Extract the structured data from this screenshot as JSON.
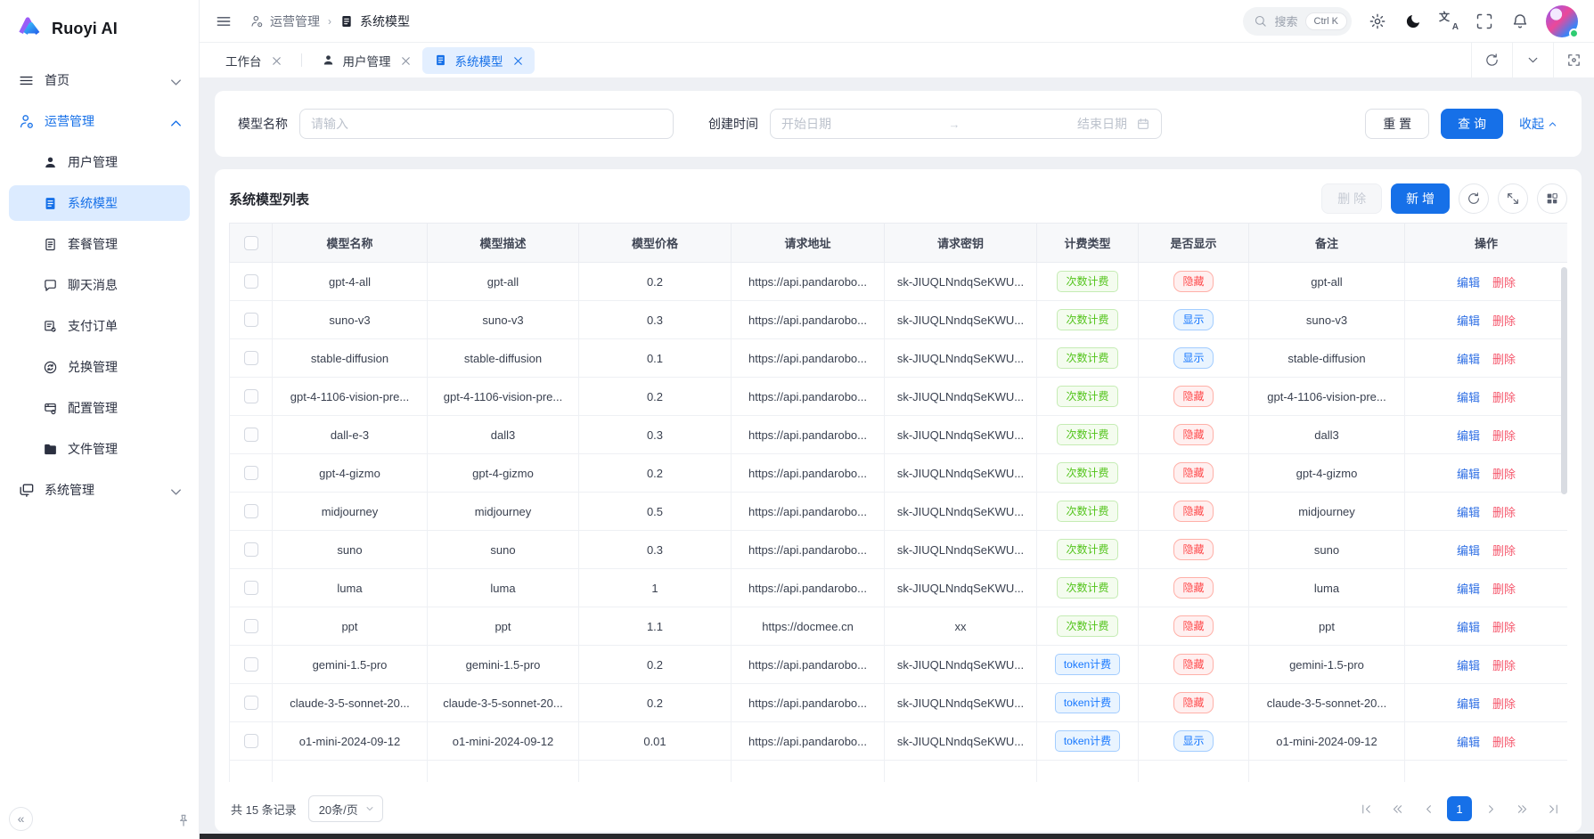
{
  "brand": {
    "name": "Ruoyi AI"
  },
  "sidebar": {
    "items": [
      {
        "id": "home",
        "label": "首页",
        "icon": "menu",
        "chevron": "down"
      },
      {
        "id": "operations",
        "label": "运营管理",
        "icon": "user-gear",
        "chevron": "up",
        "active": true,
        "children": [
          {
            "id": "user-management",
            "label": "用户管理",
            "icon": "user"
          },
          {
            "id": "system-models",
            "label": "系统模型",
            "icon": "doc-list",
            "active": true
          },
          {
            "id": "plan-management",
            "label": "套餐管理",
            "icon": "doc-outline"
          },
          {
            "id": "chat-messages",
            "label": "聊天消息",
            "icon": "chat"
          },
          {
            "id": "payment-orders",
            "label": "支付订单",
            "icon": "receipt"
          },
          {
            "id": "redeem-management",
            "label": "兑换管理",
            "icon": "exchange"
          },
          {
            "id": "config-management",
            "label": "配置管理",
            "icon": "config"
          },
          {
            "id": "file-management",
            "label": "文件管理",
            "icon": "folder"
          }
        ]
      },
      {
        "id": "system",
        "label": "系统管理",
        "icon": "monitor",
        "chevron": "down"
      }
    ]
  },
  "header": {
    "breadcrumb": [
      {
        "id": "operations",
        "label": "运营管理",
        "icon": "user-gear"
      },
      {
        "id": "system-models",
        "label": "系统模型",
        "icon": "doc-list"
      }
    ],
    "search": {
      "placeholder": "搜索",
      "shortcut": "Ctrl K"
    }
  },
  "tabs": [
    {
      "id": "workbench",
      "label": "工作台"
    },
    {
      "id": "user-management",
      "label": "用户管理",
      "icon": "user"
    },
    {
      "id": "system-models",
      "label": "系统模型",
      "icon": "doc-list",
      "active": true
    }
  ],
  "filter": {
    "model_name_label": "模型名称",
    "model_name_placeholder": "请输入",
    "create_time_label": "创建时间",
    "date_start_placeholder": "开始日期",
    "date_end_placeholder": "结束日期",
    "reset_label": "重 置",
    "search_label": "查 询",
    "collapse_label": "收起"
  },
  "table": {
    "title": "系统模型列表",
    "delete_label": "删 除",
    "add_label": "新 增",
    "columns": [
      "模型名称",
      "模型描述",
      "模型价格",
      "请求地址",
      "请求密钥",
      "计费类型",
      "是否显示",
      "备注",
      "操作"
    ],
    "edit_label": "编辑",
    "del_label": "删除",
    "billing_labels": {
      "count": "次数计费",
      "token": "token计费"
    },
    "visibility_labels": {
      "visible": "显示",
      "hidden": "隐藏"
    },
    "rows": [
      {
        "name": "gpt-4-all",
        "desc": "gpt-all",
        "price": "0.2",
        "url": "https://api.pandarobo...",
        "key": "sk-JIUQLNndqSeKWU...",
        "billing": "count",
        "visible": false,
        "remark": "gpt-all"
      },
      {
        "name": "suno-v3",
        "desc": "suno-v3",
        "price": "0.3",
        "url": "https://api.pandarobo...",
        "key": "sk-JIUQLNndqSeKWU...",
        "billing": "count",
        "visible": true,
        "remark": "suno-v3"
      },
      {
        "name": "stable-diffusion",
        "desc": "stable-diffusion",
        "price": "0.1",
        "url": "https://api.pandarobo...",
        "key": "sk-JIUQLNndqSeKWU...",
        "billing": "count",
        "visible": true,
        "remark": "stable-diffusion"
      },
      {
        "name": "gpt-4-1106-vision-pre...",
        "desc": "gpt-4-1106-vision-pre...",
        "price": "0.2",
        "url": "https://api.pandarobo...",
        "key": "sk-JIUQLNndqSeKWU...",
        "billing": "count",
        "visible": false,
        "remark": "gpt-4-1106-vision-pre..."
      },
      {
        "name": "dall-e-3",
        "desc": "dall3",
        "price": "0.3",
        "url": "https://api.pandarobo...",
        "key": "sk-JIUQLNndqSeKWU...",
        "billing": "count",
        "visible": false,
        "remark": "dall3"
      },
      {
        "name": "gpt-4-gizmo",
        "desc": "gpt-4-gizmo",
        "price": "0.2",
        "url": "https://api.pandarobo...",
        "key": "sk-JIUQLNndqSeKWU...",
        "billing": "count",
        "visible": false,
        "remark": "gpt-4-gizmo"
      },
      {
        "name": "midjourney",
        "desc": "midjourney",
        "price": "0.5",
        "url": "https://api.pandarobo...",
        "key": "sk-JIUQLNndqSeKWU...",
        "billing": "count",
        "visible": false,
        "remark": "midjourney"
      },
      {
        "name": "suno",
        "desc": "suno",
        "price": "0.3",
        "url": "https://api.pandarobo...",
        "key": "sk-JIUQLNndqSeKWU...",
        "billing": "count",
        "visible": false,
        "remark": "suno"
      },
      {
        "name": "luma",
        "desc": "luma",
        "price": "1",
        "url": "https://api.pandarobo...",
        "key": "sk-JIUQLNndqSeKWU...",
        "billing": "count",
        "visible": false,
        "remark": "luma"
      },
      {
        "name": "ppt",
        "desc": "ppt",
        "price": "1.1",
        "url": "https://docmee.cn",
        "key": "xx",
        "billing": "count",
        "visible": false,
        "remark": "ppt"
      },
      {
        "name": "gemini-1.5-pro",
        "desc": "gemini-1.5-pro",
        "price": "0.2",
        "url": "https://api.pandarobo...",
        "key": "sk-JIUQLNndqSeKWU...",
        "billing": "token",
        "visible": false,
        "remark": "gemini-1.5-pro"
      },
      {
        "name": "claude-3-5-sonnet-20...",
        "desc": "claude-3-5-sonnet-20...",
        "price": "0.2",
        "url": "https://api.pandarobo...",
        "key": "sk-JIUQLNndqSeKWU...",
        "billing": "token",
        "visible": false,
        "remark": "claude-3-5-sonnet-20..."
      },
      {
        "name": "o1-mini-2024-09-12",
        "desc": "o1-mini-2024-09-12",
        "price": "0.01",
        "url": "https://api.pandarobo...",
        "key": "sk-JIUQLNndqSeKWU...",
        "billing": "token",
        "visible": true,
        "remark": "o1-mini-2024-09-12"
      }
    ]
  },
  "pagination": {
    "total_text": "共 15 条记录",
    "page_size": "20条/页",
    "current_page": "1"
  },
  "colors": {
    "primary": "#1670e8",
    "tag_green": "#52c41a",
    "tag_blue": "#1677ff",
    "tag_red": "#ff4d4f",
    "link_edit": "#2f6fe4",
    "link_delete": "#f5576c",
    "sidebar_active_bg": "#dcebff",
    "tab_active_bg": "#e3efff"
  }
}
